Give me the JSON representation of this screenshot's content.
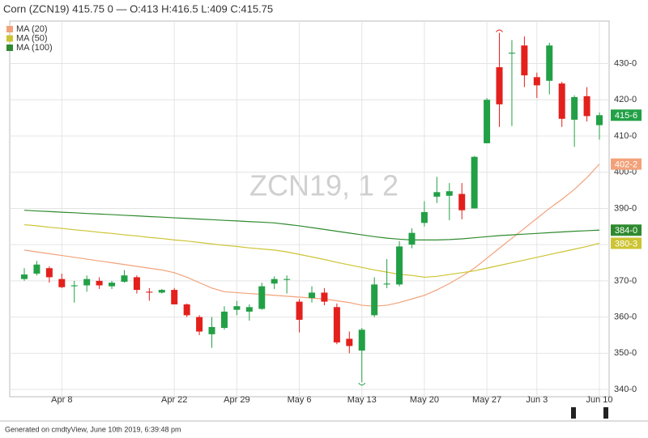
{
  "chart_data": {
    "type": "candlestick",
    "title": "Corn (ZCN19) 415.75 0 — O:413 H:416.5 L:409 C:415.75",
    "watermark": "ZCN19, 1 2",
    "footer": "Generated on cmdtyView, June 10th 2019, 6:39:48 pm",
    "categories": [
      null,
      null,
      null,
      "Apr 8",
      null,
      null,
      null,
      null,
      null,
      null,
      null,
      null,
      "Apr 22",
      null,
      null,
      null,
      null,
      "Apr 29",
      null,
      null,
      null,
      null,
      "May 6",
      null,
      null,
      null,
      null,
      "May 13",
      null,
      null,
      null,
      null,
      "May 20",
      null,
      null,
      null,
      null,
      "May 27",
      null,
      null,
      null,
      "Jun 3",
      null,
      null,
      null,
      null,
      "Jun 10"
    ],
    "open": [
      370.5,
      372,
      373.5,
      370.5,
      368.5,
      368.75,
      370,
      368.5,
      369.75,
      371,
      367,
      366.75,
      367.5,
      363.5,
      360,
      355.25,
      357,
      362,
      361.5,
      362.25,
      369.25,
      370.25,
      364.25,
      365.25,
      366.75,
      362.75,
      354,
      350.75,
      360.5,
      369,
      369,
      380,
      386,
      393.25,
      393.5,
      394,
      390,
      408,
      429,
      432.75,
      435,
      426.25,
      425.25,
      424.5,
      414.5,
      421,
      413
    ],
    "high": [
      373.5,
      375.5,
      374,
      372,
      370,
      371.5,
      371,
      370,
      373,
      371.5,
      368,
      367.75,
      368,
      363.75,
      360.5,
      360,
      363,
      364.5,
      363.5,
      369.5,
      371.25,
      371.5,
      365,
      368.5,
      368,
      363.75,
      356,
      357,
      371,
      376,
      381,
      384.5,
      392,
      398.75,
      397,
      397,
      404.5,
      420.5,
      438.5,
      436.5,
      437.5,
      427.5,
      435.75,
      425,
      421.25,
      423.5,
      416.5
    ],
    "low": [
      370,
      371.5,
      369.5,
      368,
      364,
      367,
      367.75,
      367.75,
      369.5,
      366.5,
      364.5,
      366.5,
      363.5,
      360,
      355,
      351.5,
      356.5,
      360.5,
      359,
      362,
      367.75,
      366.5,
      355.75,
      364,
      363.25,
      352.5,
      350,
      342,
      360,
      368,
      368.5,
      379,
      385,
      391.5,
      386.75,
      387,
      390,
      408,
      412.5,
      412.75,
      423.5,
      420.5,
      421.5,
      412.5,
      407,
      414,
      409
    ],
    "close": [
      371.75,
      374.5,
      371,
      368.25,
      368.75,
      370.5,
      368.75,
      369.5,
      371.5,
      367.5,
      366.75,
      367.5,
      363.5,
      360.5,
      356,
      357.25,
      361.5,
      363,
      362.75,
      368.5,
      370.5,
      370.5,
      359.25,
      366.75,
      364.25,
      353,
      352,
      356.5,
      369,
      369.25,
      379.5,
      383.25,
      389,
      394.5,
      394.75,
      389.5,
      404.25,
      420,
      418.75,
      433,
      426.75,
      424,
      435,
      414.75,
      420.75,
      415.5,
      415.75
    ],
    "up_color": "#22a046",
    "down_color": "#e3201c",
    "price_label": "415-6",
    "series": [
      {
        "name": "MA (20)",
        "color": "#f2a27a",
        "last_label": "402-2",
        "values": [
          378.5,
          378,
          377.5,
          377,
          376.5,
          376,
          375.5,
          375,
          374.5,
          374,
          373.5,
          373,
          372.25,
          371,
          369.5,
          368,
          367,
          366.75,
          366.5,
          366.25,
          366,
          365.75,
          365.5,
          365.25,
          365,
          364.5,
          364,
          363.25,
          363,
          363.25,
          364,
          365,
          366,
          367.5,
          369.25,
          371.25,
          373.5,
          376.25,
          379,
          381.75,
          384.5,
          387.25,
          390,
          392.5,
          395.25,
          398.5,
          402.25
        ]
      },
      {
        "name": "MA (50)",
        "color": "#cdc433",
        "last_label": "380-3",
        "values": [
          385.5,
          385.2,
          384.8,
          384.5,
          384.1,
          383.8,
          383.4,
          383.1,
          382.7,
          382.4,
          382,
          381.7,
          381.3,
          381,
          380.6,
          380.2,
          379.8,
          379.5,
          379.1,
          378.8,
          378.5,
          378,
          377.3,
          376.6,
          375.9,
          375.1,
          374.4,
          373.7,
          373,
          372.4,
          371.8,
          371.5,
          371,
          371.25,
          371.75,
          372.25,
          372.75,
          373.5,
          374.25,
          375,
          375.75,
          376.5,
          377.25,
          378,
          378.75,
          379.5,
          380.375
        ]
      },
      {
        "name": "MA (100)",
        "color": "#2f8a2f",
        "last_label": "384-0",
        "values": [
          389.5,
          389.3,
          389.15,
          388.95,
          388.8,
          388.6,
          388.45,
          388.3,
          388.1,
          387.95,
          387.75,
          387.6,
          387.4,
          387.25,
          387.05,
          386.9,
          386.7,
          386.55,
          386.35,
          386.2,
          386,
          385.6,
          385.2,
          384.7,
          384.2,
          383.7,
          383.2,
          382.7,
          382.2,
          381.8,
          381.5,
          381.3,
          381.3,
          381.3,
          381.4,
          381.6,
          381.9,
          382.2,
          382.5,
          382.7,
          382.9,
          383.1,
          383.3,
          383.5,
          383.7,
          383.85,
          384
        ]
      }
    ],
    "ylim": [
      338,
      441.75
    ],
    "yticks": [
      {
        "value": 340,
        "label": "340-0"
      },
      {
        "value": 350,
        "label": "350-0"
      },
      {
        "value": 360,
        "label": "360-0"
      },
      {
        "value": 370,
        "label": "370-0"
      },
      {
        "value": 380,
        "label": "380-0"
      },
      {
        "value": 390,
        "label": "390-0"
      },
      {
        "value": 400,
        "label": "400-0"
      },
      {
        "value": 410,
        "label": "410-0"
      },
      {
        "value": 420,
        "label": "420-0"
      },
      {
        "value": 430,
        "label": "430-0"
      }
    ],
    "grid": true
  }
}
